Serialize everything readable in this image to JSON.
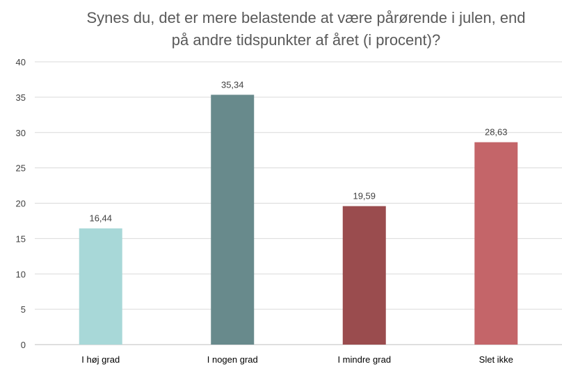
{
  "chart_data": {
    "type": "bar",
    "title_lines": [
      "Synes du, det er mere belastende at være pårørende i julen, end",
      "på andre tidspunkter af året (i procent)?"
    ],
    "categories": [
      "I høj grad",
      "I nogen grad",
      "I mindre grad",
      "Slet ikke"
    ],
    "values": [
      16.44,
      35.34,
      19.59,
      28.63
    ],
    "value_labels": [
      "16,44",
      "35,34",
      "19,59",
      "28,63"
    ],
    "colors": [
      "#a8d8d8",
      "#688a8c",
      "#9a4c4e",
      "#c46569"
    ],
    "ylim": [
      0,
      40
    ],
    "yticks": [
      0,
      5,
      10,
      15,
      20,
      25,
      30,
      35,
      40
    ],
    "grid": true,
    "legend": "none"
  }
}
